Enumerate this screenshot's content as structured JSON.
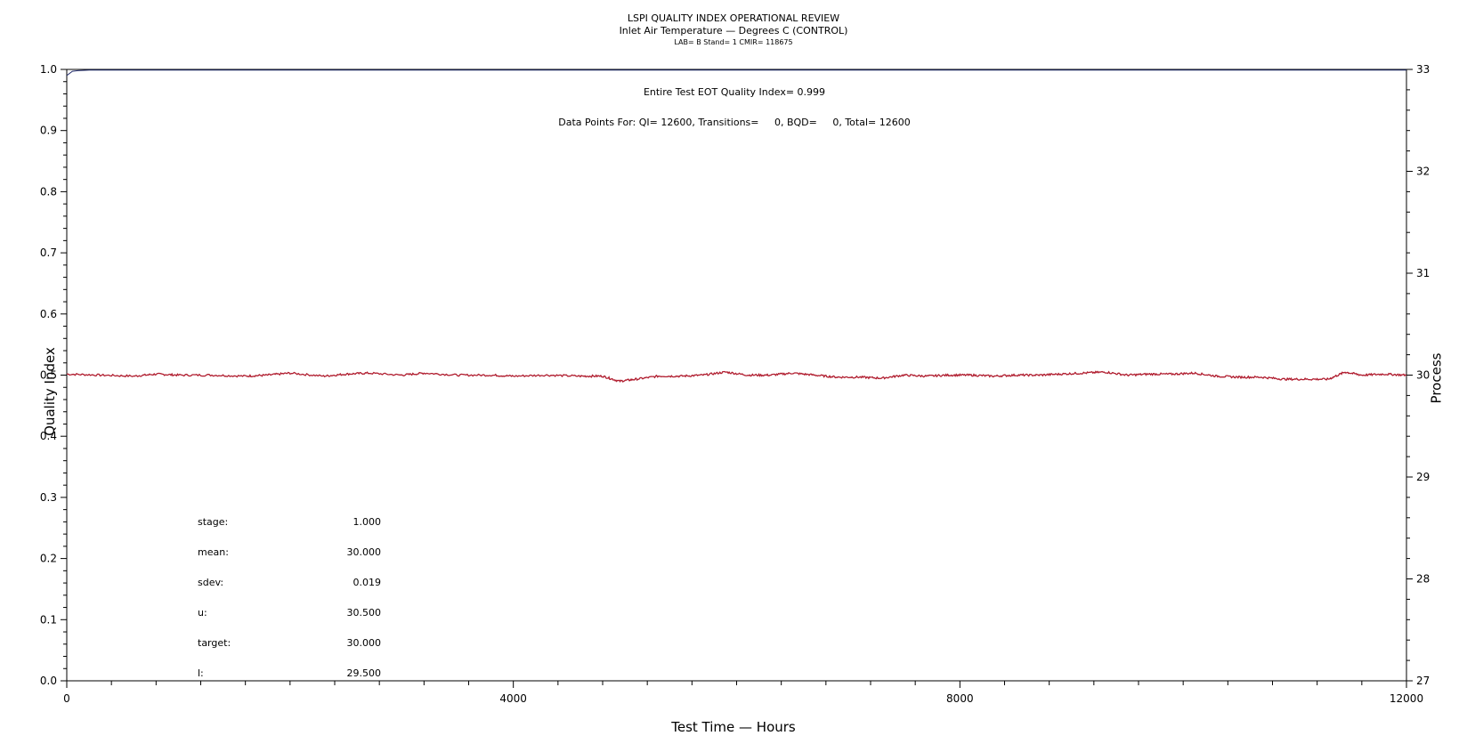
{
  "titles": {
    "line1": "LSPI QUALITY INDEX OPERATIONAL REVIEW",
    "line2": "Inlet Air Temperature — Degrees C (CONTROL)",
    "line3": "LAB= B Stand= 1 CMIR= 118675"
  },
  "chart_data": {
    "type": "line",
    "xlabel": "Test Time — Hours",
    "ylabel": "Quality Index",
    "y2label": "Process",
    "xlim": [
      0,
      12000
    ],
    "ylim": [
      0.0,
      1.0
    ],
    "y2lim": [
      27,
      33
    ],
    "x_ticks": [
      0,
      4000,
      8000,
      12000
    ],
    "y_ticks": [
      "0.0",
      "0.1",
      "0.2",
      "0.3",
      "0.4",
      "0.5",
      "0.6",
      "0.7",
      "0.8",
      "0.9",
      "1.0"
    ],
    "y2_ticks": [
      "27",
      "28",
      "29",
      "30",
      "31",
      "32",
      "33"
    ],
    "grid": false,
    "annotations": {
      "quality_index_text": "Entire Test EOT Quality Index=   0.999",
      "data_points_text": "Data Points For: QI= 12600, Transitions=     0, BQD=     0, Total= 12600"
    },
    "stats": [
      {
        "label": "stage:",
        "value": "1.000"
      },
      {
        "label": "mean:",
        "value": "30.000"
      },
      {
        "label": "sdev:",
        "value": "0.019"
      },
      {
        "label": "u:",
        "value": "30.500"
      },
      {
        "label": "target:",
        "value": "30.000"
      },
      {
        "label": "l:",
        "value": "29.500"
      }
    ],
    "series": [
      {
        "axis": "left",
        "color": "#1f2a6b",
        "x": [
          0,
          50,
          100,
          200,
          300,
          12000
        ],
        "y": [
          0.99,
          0.997,
          0.998,
          0.999,
          0.999,
          0.999
        ]
      },
      {
        "axis": "right",
        "color": "#b01c2e",
        "x": [
          0,
          300,
          600,
          800,
          1000,
          1300,
          1600,
          1800,
          2000,
          2300,
          2500,
          2700,
          3000,
          3200,
          3500,
          3800,
          4000,
          4300,
          4600,
          4800,
          4950,
          5100,
          5300,
          5500,
          5700,
          5900,
          6100,
          6300,
          6500,
          6700,
          6900,
          7100,
          7300,
          7500,
          7700,
          7900,
          8100,
          8300,
          8500,
          8700,
          8900,
          9100,
          9300,
          9500,
          9700,
          9900,
          10100,
          10300,
          10500,
          10700,
          10900,
          11100,
          11300,
          11450,
          11600,
          11800,
          12000
        ],
        "y": [
          30.01,
          30.0,
          29.99,
          30.01,
          30.0,
          30.0,
          29.99,
          30.0,
          30.02,
          29.99,
          30.01,
          30.02,
          30.0,
          30.02,
          30.0,
          30.0,
          29.99,
          30.0,
          29.99,
          29.99,
          29.94,
          29.96,
          29.99,
          29.99,
          30.0,
          30.03,
          30.0,
          30.0,
          30.02,
          30.0,
          29.98,
          29.98,
          29.97,
          30.0,
          29.99,
          30.0,
          30.0,
          29.99,
          30.0,
          30.0,
          30.01,
          30.02,
          30.03,
          30.0,
          30.01,
          30.01,
          30.02,
          29.99,
          29.98,
          29.98,
          29.96,
          29.96,
          29.96,
          30.03,
          30.0,
          30.01,
          30.0
        ]
      }
    ]
  }
}
